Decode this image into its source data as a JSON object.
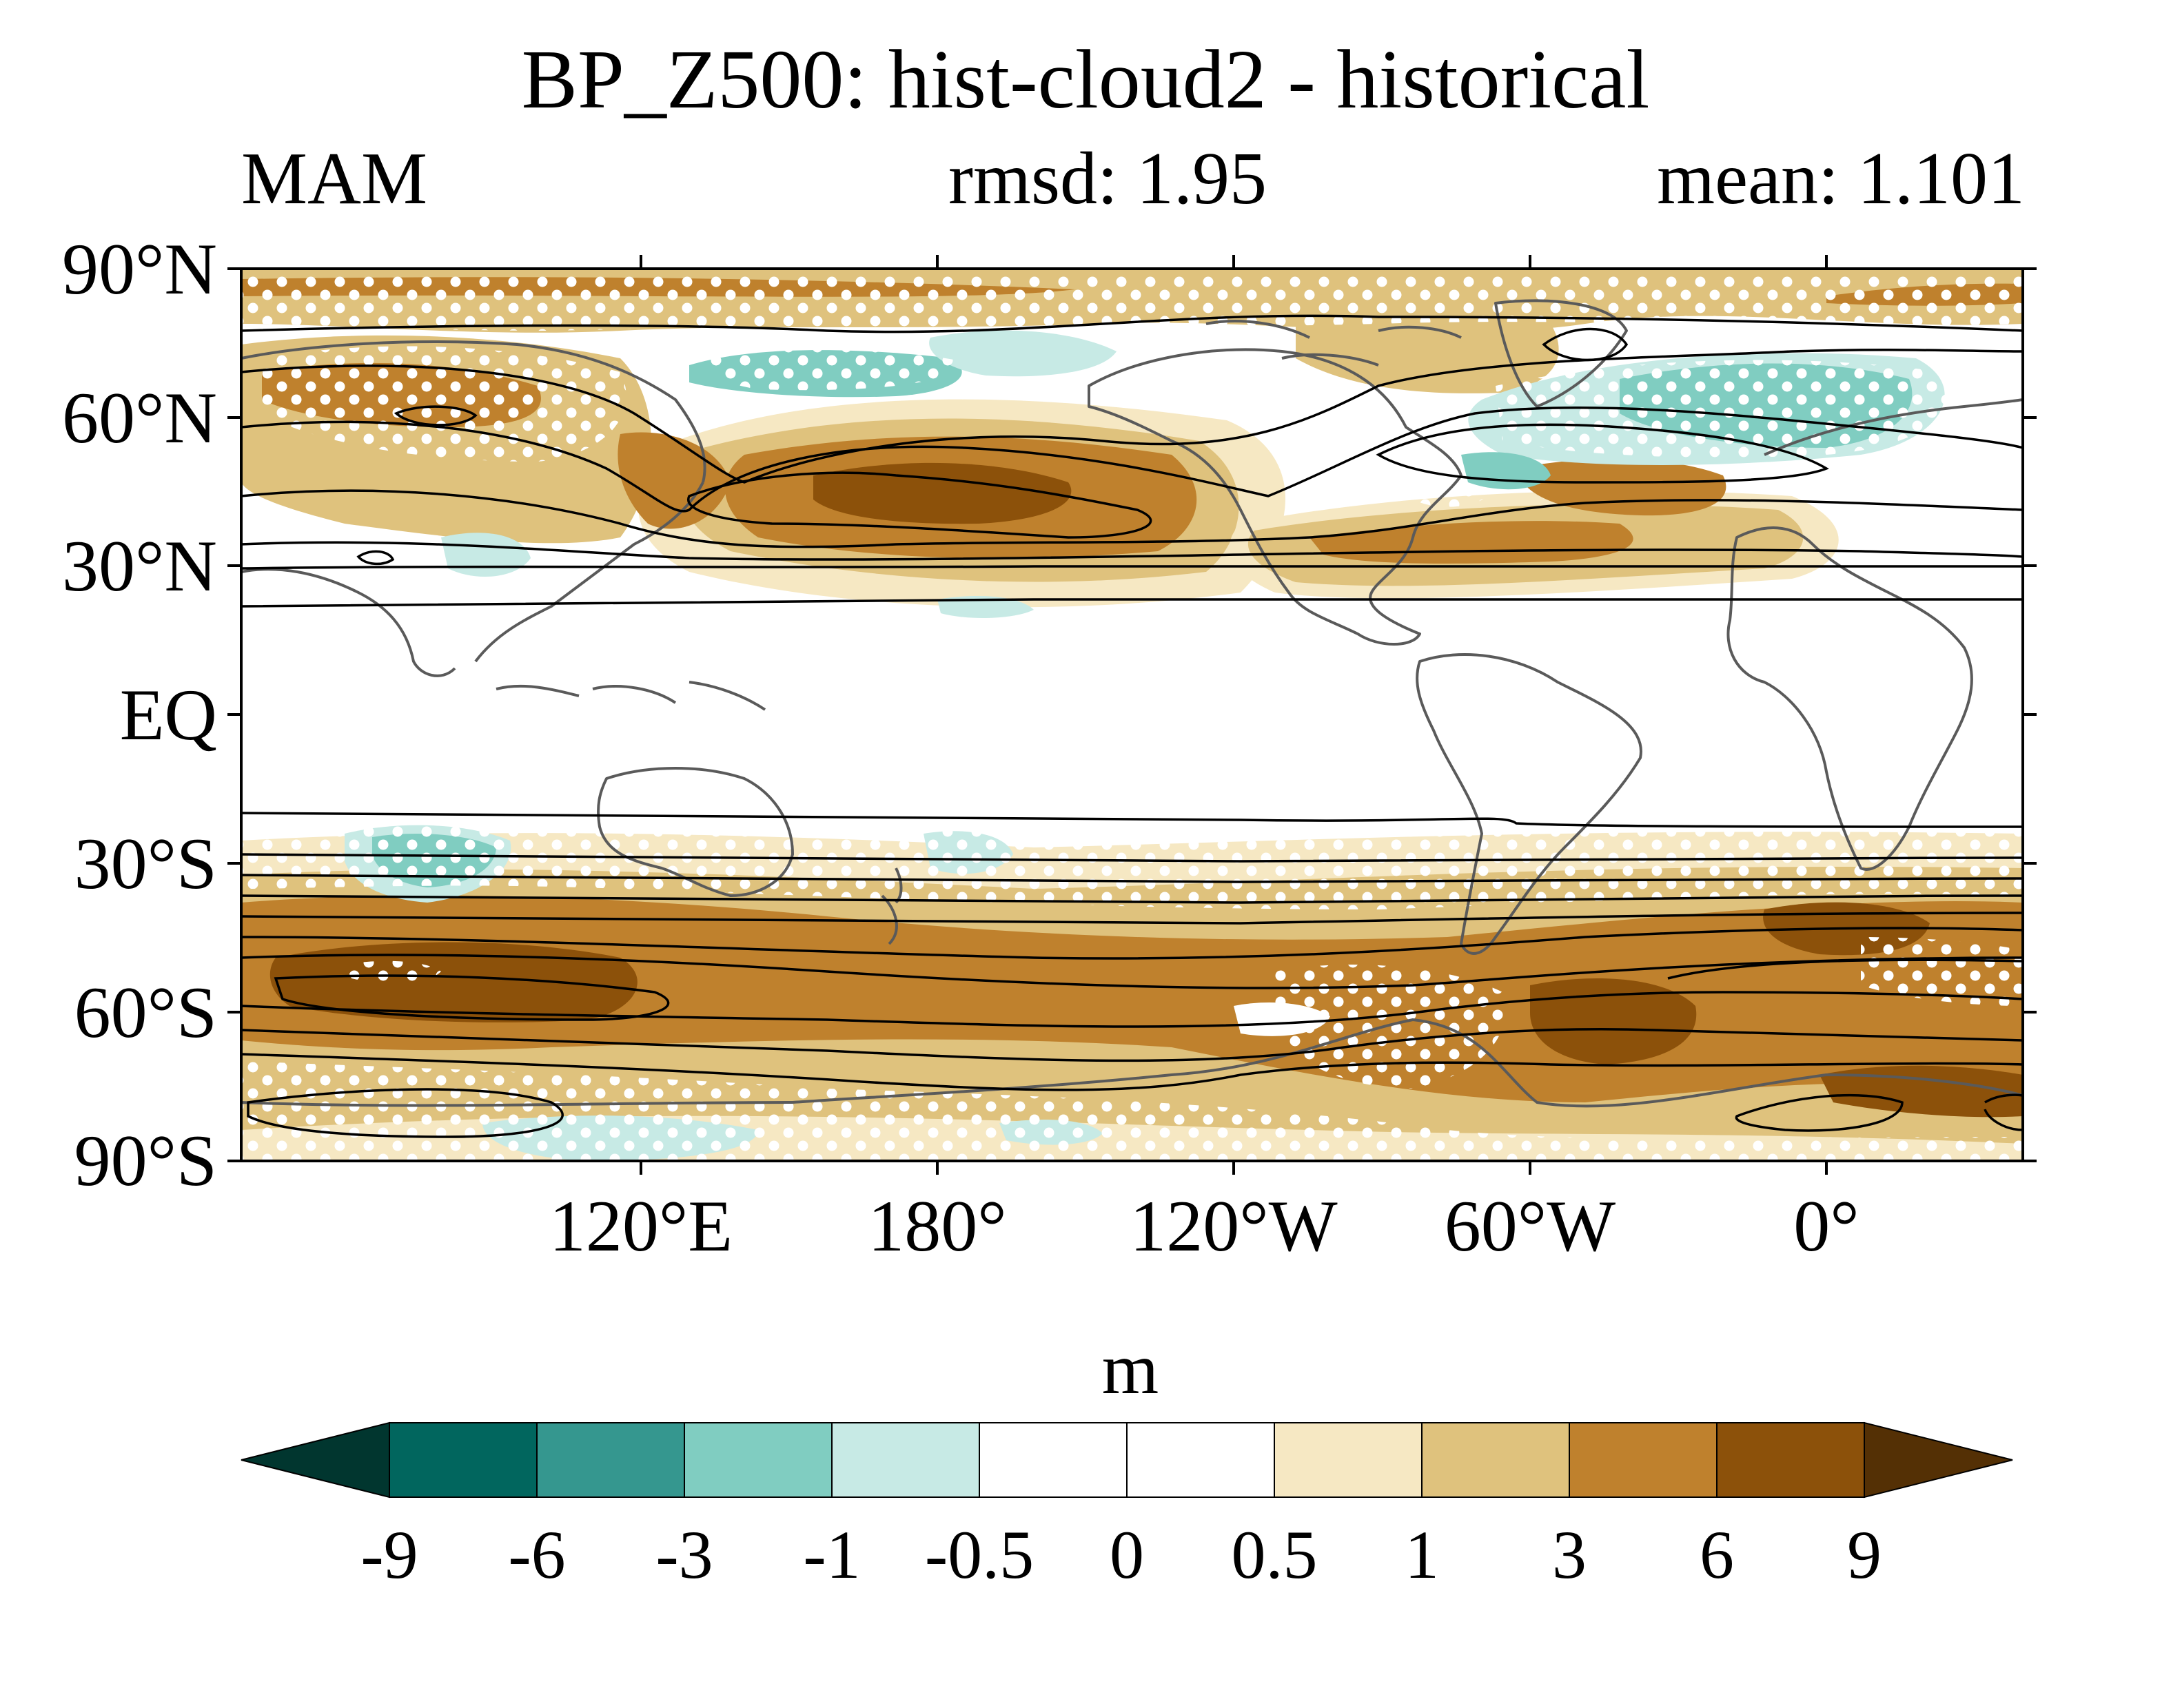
{
  "title": "BP_Z500: hist-cloud2 - historical",
  "season": "MAM",
  "rmsd": "rmsd: 1.95",
  "mean": "mean: 1.101",
  "map": {
    "lat_labels": [
      "90°N",
      "60°N",
      "30°N",
      "EQ",
      "30°S",
      "60°S",
      "90°S"
    ],
    "lon_labels": [
      "120°E",
      "180°",
      "120°W",
      "60°W",
      "0°"
    ],
    "projection": "cylindrical equidistant, centered 150°W",
    "features": [
      "shaded anomaly",
      "contour lines",
      "stippling",
      "coastlines"
    ]
  },
  "colorbar": {
    "units": "m",
    "levels": [
      "-9",
      "-6",
      "-3",
      "-1",
      "-0.5",
      "0",
      "0.5",
      "1",
      "3",
      "6",
      "9"
    ],
    "colors": [
      "#01362f",
      "#01665e",
      "#35978f",
      "#80cdc1",
      "#c7eae5",
      "#ffffff",
      "#ffffff",
      "#f6e8c3",
      "#dfc27d",
      "#bf812d",
      "#8c510a",
      "#543005"
    ],
    "extend": "both"
  }
}
